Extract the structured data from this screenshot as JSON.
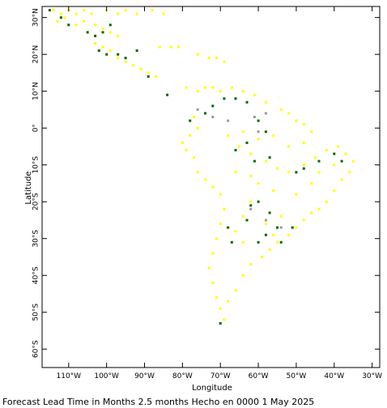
{
  "map": {
    "xlabel": "Longitude",
    "ylabel": "Latitude",
    "caption": "Forecast Lead Time in Months 2.5 months Hecho en 0000 1 May 2025",
    "lon_range": [
      -117,
      -28
    ],
    "lat_range": [
      -65,
      33
    ],
    "x_ticks": [
      {
        "value": -110,
        "label": "110°W"
      },
      {
        "value": -100,
        "label": "100°W"
      },
      {
        "value": -90,
        "label": "90°W"
      },
      {
        "value": -80,
        "label": "80°W"
      },
      {
        "value": -70,
        "label": "70°W"
      },
      {
        "value": -60,
        "label": "60°W"
      },
      {
        "value": -50,
        "label": "50°W"
      },
      {
        "value": -40,
        "label": "40°W"
      },
      {
        "value": -30,
        "label": "30°W"
      }
    ],
    "y_ticks": [
      {
        "value": 30,
        "label": "30°N"
      },
      {
        "value": 20,
        "label": "20°N"
      },
      {
        "value": 10,
        "label": "10°N"
      },
      {
        "value": 0,
        "label": "0°"
      },
      {
        "value": -10,
        "label": "10°S"
      },
      {
        "value": -20,
        "label": "20°S"
      },
      {
        "value": -30,
        "label": "30°S"
      },
      {
        "value": -40,
        "label": "40°S"
      },
      {
        "value": -50,
        "label": "50°S"
      },
      {
        "value": -60,
        "label": "60°S"
      }
    ],
    "colors": {
      "yellow": "#ffff00",
      "green": "#006400",
      "gray": "#999999",
      "frame": "#000000"
    }
  },
  "chart_data": {
    "type": "scatter",
    "xlabel": "Longitude",
    "ylabel": "Latitude",
    "xlim": [
      -117,
      -28
    ],
    "ylim": [
      -65,
      33
    ],
    "series": [
      {
        "color": "#ffff00",
        "points": [
          [
            -114,
            32
          ],
          [
            -112,
            31
          ],
          [
            -110,
            32
          ],
          [
            -108,
            31
          ],
          [
            -106,
            32
          ],
          [
            -104,
            31
          ],
          [
            -100,
            32
          ],
          [
            -97,
            31
          ],
          [
            -95,
            32
          ],
          [
            -92,
            31
          ],
          [
            -88,
            32
          ],
          [
            -85,
            31
          ],
          [
            -113,
            29
          ],
          [
            -111,
            30
          ],
          [
            -108,
            28
          ],
          [
            -106,
            29
          ],
          [
            -103,
            28
          ],
          [
            -101,
            27
          ],
          [
            -99,
            26
          ],
          [
            -97,
            25
          ],
          [
            -103,
            23
          ],
          [
            -101,
            22
          ],
          [
            -99,
            21
          ],
          [
            -97,
            19
          ],
          [
            -95,
            18
          ],
          [
            -93,
            17
          ],
          [
            -91,
            16
          ],
          [
            -89,
            15
          ],
          [
            -87,
            14
          ],
          [
            -86,
            22
          ],
          [
            -83,
            22
          ],
          [
            -81,
            22
          ],
          [
            -76,
            20
          ],
          [
            -73,
            19
          ],
          [
            -71,
            19
          ],
          [
            -69,
            18
          ],
          [
            -79,
            11
          ],
          [
            -76,
            10
          ],
          [
            -74,
            11
          ],
          [
            -72,
            11
          ],
          [
            -70,
            10
          ],
          [
            -67,
            11
          ],
          [
            -64,
            10
          ],
          [
            -61,
            9
          ],
          [
            -58,
            7
          ],
          [
            -54,
            5
          ],
          [
            -52,
            4
          ],
          [
            -50,
            2
          ],
          [
            -48,
            1
          ],
          [
            -46,
            -1
          ],
          [
            -77,
            3
          ],
          [
            -76,
            0
          ],
          [
            -78,
            -2
          ],
          [
            -80,
            -4
          ],
          [
            -79,
            -6
          ],
          [
            -77,
            -8
          ],
          [
            -76,
            -12
          ],
          [
            -74,
            -14
          ],
          [
            -72,
            -16
          ],
          [
            -70,
            -18
          ],
          [
            -69,
            -22
          ],
          [
            -70,
            -26
          ],
          [
            -71,
            -30
          ],
          [
            -72,
            -34
          ],
          [
            -73,
            -38
          ],
          [
            -72,
            -42
          ],
          [
            -71,
            -46
          ],
          [
            -70,
            -49
          ],
          [
            -69,
            -52
          ],
          [
            -65,
            -5
          ],
          [
            -62,
            -7
          ],
          [
            -58,
            -9
          ],
          [
            -55,
            -11
          ],
          [
            -52,
            -12
          ],
          [
            -48,
            -10
          ],
          [
            -45,
            -8
          ],
          [
            -42,
            -6
          ],
          [
            -39,
            -5
          ],
          [
            -37,
            -7
          ],
          [
            -35,
            -9
          ],
          [
            -36,
            -12
          ],
          [
            -38,
            -14
          ],
          [
            -40,
            -17
          ],
          [
            -42,
            -20
          ],
          [
            -44,
            -22
          ],
          [
            -46,
            -23
          ],
          [
            -48,
            -25
          ],
          [
            -50,
            -27
          ],
          [
            -52,
            -29
          ],
          [
            -55,
            -31
          ],
          [
            -57,
            -33
          ],
          [
            -59,
            -35
          ],
          [
            -62,
            -37
          ],
          [
            -64,
            -40
          ],
          [
            -66,
            -44
          ],
          [
            -68,
            -47
          ],
          [
            -60,
            -15
          ],
          [
            -62,
            -20
          ],
          [
            -64,
            -24
          ],
          [
            -58,
            -26
          ],
          [
            -56,
            -29
          ],
          [
            -54,
            -24
          ],
          [
            -50,
            -18
          ],
          [
            -46,
            -15
          ],
          [
            -44,
            -12
          ],
          [
            -40,
            -10
          ],
          [
            -68,
            -2
          ],
          [
            -64,
            -1
          ],
          [
            -60,
            -3
          ],
          [
            -56,
            -2
          ],
          [
            -52,
            -5
          ],
          [
            -48,
            -4
          ],
          [
            -66,
            -12
          ],
          [
            -62,
            -13
          ],
          [
            -56,
            -17
          ],
          [
            -66,
            -28
          ],
          [
            -64,
            -31
          ]
        ]
      },
      {
        "color": "#006400",
        "points": [
          [
            -115,
            32
          ],
          [
            -112,
            30
          ],
          [
            -110,
            28
          ],
          [
            -105,
            26
          ],
          [
            -103,
            25
          ],
          [
            -101,
            26
          ],
          [
            -99,
            28
          ],
          [
            -102,
            21
          ],
          [
            -100,
            20
          ],
          [
            -97,
            20
          ],
          [
            -95,
            19
          ],
          [
            -92,
            21
          ],
          [
            -89,
            14
          ],
          [
            -84,
            9
          ],
          [
            -78,
            2
          ],
          [
            -74,
            4
          ],
          [
            -72,
            6
          ],
          [
            -69,
            8
          ],
          [
            -66,
            8
          ],
          [
            -63,
            7
          ],
          [
            -60,
            2
          ],
          [
            -58,
            -1
          ],
          [
            -63,
            -4
          ],
          [
            -66,
            -6
          ],
          [
            -61,
            -9
          ],
          [
            -57,
            -8
          ],
          [
            -50,
            -12
          ],
          [
            -48,
            -11
          ],
          [
            -44,
            -9
          ],
          [
            -40,
            -7
          ],
          [
            -38,
            -9
          ],
          [
            -60,
            -20
          ],
          [
            -62,
            -21
          ],
          [
            -57,
            -23
          ],
          [
            -55,
            -27
          ],
          [
            -58,
            -29
          ],
          [
            -60,
            -31
          ],
          [
            -54,
            -31
          ],
          [
            -51,
            -27
          ],
          [
            -63,
            -25
          ],
          [
            -68,
            -27
          ],
          [
            -67,
            -31
          ],
          [
            -70,
            -53
          ]
        ]
      },
      {
        "color": "#999999",
        "points": [
          [
            -76,
            5
          ],
          [
            -72,
            3
          ],
          [
            -68,
            2
          ],
          [
            -61,
            3
          ],
          [
            -58,
            4
          ],
          [
            -60,
            -1
          ],
          [
            -62,
            -22
          ],
          [
            -58,
            -25
          ],
          [
            -54,
            -27
          ]
        ]
      }
    ]
  }
}
